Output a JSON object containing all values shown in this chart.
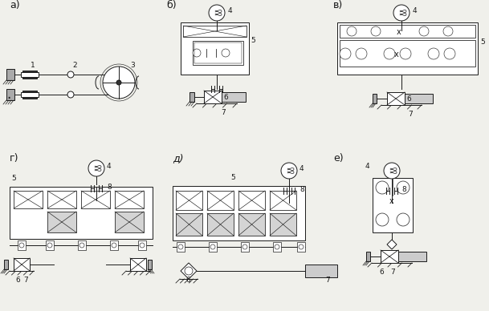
{
  "bg_color": "#f0f0eb",
  "line_color": "#1a1a1a",
  "labels": [
    "а)",
    "б)",
    "в)",
    "г)",
    "д)",
    "е)"
  ],
  "label_fontsize": 9,
  "fig_w": 6.09,
  "fig_h": 3.88,
  "dpi": 100
}
